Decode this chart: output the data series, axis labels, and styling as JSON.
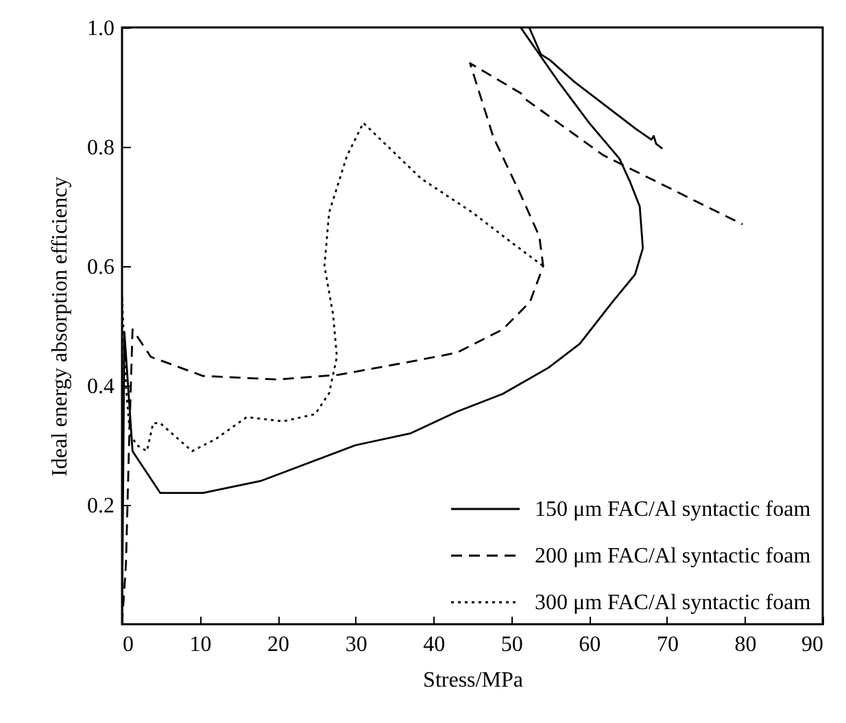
{
  "chart_data": {
    "type": "line",
    "xlabel": "Stress/MPa",
    "ylabel": "Ideal energy absorption efficiency",
    "xlim": [
      0,
      90
    ],
    "ylim": [
      0,
      1.0
    ],
    "xticks": [
      0,
      10,
      20,
      30,
      40,
      50,
      60,
      70,
      80,
      90
    ],
    "yticks": [
      0.2,
      0.4,
      0.6,
      0.8,
      {
        "value": 1.0,
        "label": "1.0"
      }
    ],
    "grid": false,
    "legend": "bottom right",
    "series": [
      {
        "name": "150 μm FAC/Al syntactic foam",
        "color": "#000000",
        "line_style": "solid",
        "x": [
          0,
          0.3,
          1.35,
          4.9,
          10.4,
          17.8,
          30,
          37.1,
          43,
          48.9,
          54.8,
          58.8,
          63,
          65.9,
          66.9,
          66.5,
          65.3,
          63.9,
          60,
          56,
          51.2,
          52,
          52.3,
          53.8,
          55,
          58,
          62,
          66,
          68,
          68.3,
          68.6,
          69.4
        ],
        "values": [
          0,
          0.49,
          0.29,
          0.22,
          0.22,
          0.24,
          0.3,
          0.32,
          0.356,
          0.386,
          0.43,
          0.47,
          0.54,
          0.586,
          0.63,
          0.7,
          0.74,
          0.78,
          0.84,
          0.91,
          1.0,
          null,
          1.0,
          0.955,
          0.945,
          0.91,
          0.87,
          0.83,
          0.812,
          0.818,
          0.805,
          0.797
        ]
      },
      {
        "name": "200 μm FAC/Al syntactic foam",
        "color": "#000000",
        "line_style": "dashed",
        "x": [
          0,
          0.5,
          0.9,
          1.35,
          3.7,
          10.4,
          20,
          27.8,
          37.1,
          43,
          48.9,
          52.4,
          54.1,
          53.6,
          51.2,
          47.7,
          44.7,
          51.2,
          51.8,
          61.8,
          79.7
        ],
        "values": [
          0,
          0.1,
          0.3,
          0.494,
          0.448,
          0.416,
          0.41,
          0.418,
          0.44,
          0.455,
          0.494,
          0.54,
          0.6,
          0.65,
          0.72,
          0.816,
          0.94,
          0.89,
          0.88,
          0.786,
          0.67
        ]
      },
      {
        "name": "300 μm FAC/Al syntactic foam",
        "color": "#000000",
        "line_style": "dotted",
        "x": [
          0,
          0,
          0.5,
          1.0,
          1.9,
          3.2,
          4,
          4.9,
          9,
          12,
          16,
          20.7,
          24.8,
          26.6,
          27.6,
          27.1,
          26,
          26.6,
          28.9,
          31,
          38.4,
          45,
          50,
          54.1
        ],
        "values": [
          0,
          0.55,
          0.4,
          0.32,
          0.3,
          0.29,
          0.337,
          0.337,
          0.29,
          0.31,
          0.347,
          0.34,
          0.352,
          0.387,
          0.448,
          0.52,
          0.6,
          0.69,
          0.785,
          0.84,
          0.747,
          0.69,
          0.64,
          0.6
        ]
      }
    ]
  }
}
